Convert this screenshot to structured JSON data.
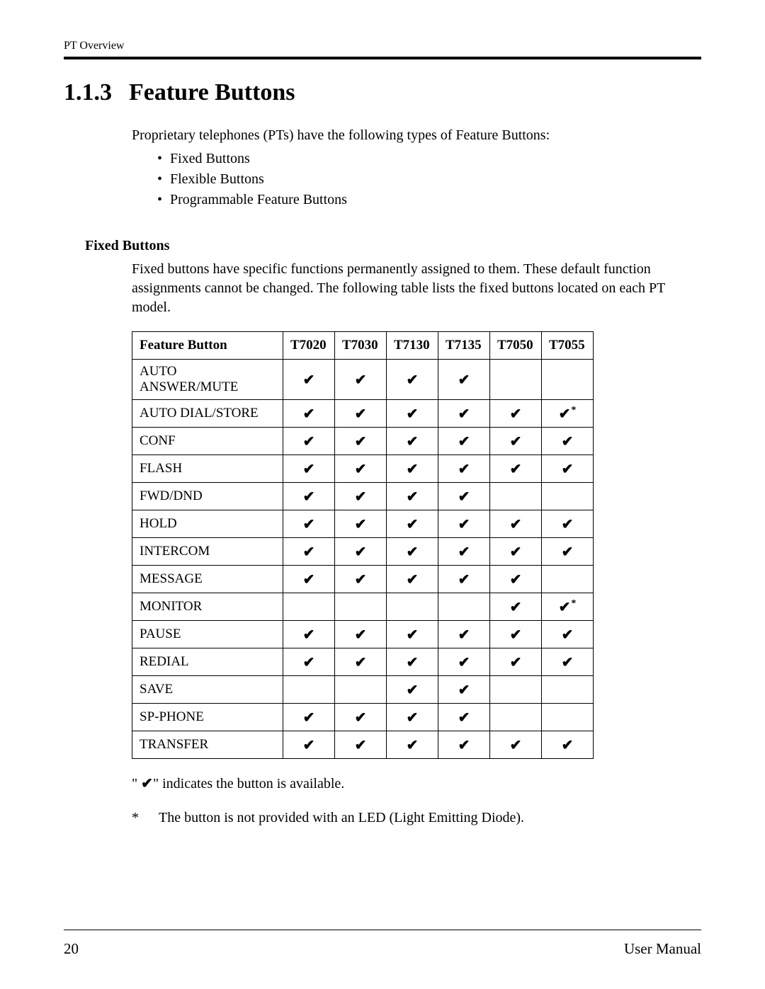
{
  "header": {
    "running": "PT Overview"
  },
  "section": {
    "number": "1.1.3",
    "title": "Feature Buttons",
    "intro": "Proprietary telephones (PTs) have the following types of Feature Buttons:",
    "bullets": [
      "Fixed Buttons",
      "Flexible Buttons",
      "Programmable Feature Buttons"
    ]
  },
  "subsection": {
    "heading": "Fixed Buttons",
    "description": "Fixed buttons have specific functions permanently assigned to them. These default function assignments cannot be changed. The following table lists the fixed buttons located on each PT model."
  },
  "table": {
    "head": {
      "feature_label": "Feature Button",
      "models": [
        "T7020",
        "T7030",
        "T7130",
        "T7135",
        "T7050",
        "T7055"
      ]
    },
    "check_glyph": "✔",
    "star_glyph": "*",
    "rows": [
      {
        "name": "AUTO ANSWER/MUTE",
        "cells": [
          "c",
          "c",
          "c",
          "c",
          "",
          ""
        ]
      },
      {
        "name": "AUTO DIAL/STORE",
        "cells": [
          "c",
          "c",
          "c",
          "c",
          "c",
          "cs"
        ]
      },
      {
        "name": "CONF",
        "cells": [
          "c",
          "c",
          "c",
          "c",
          "c",
          "c"
        ]
      },
      {
        "name": "FLASH",
        "cells": [
          "c",
          "c",
          "c",
          "c",
          "c",
          "c"
        ]
      },
      {
        "name": "FWD/DND",
        "cells": [
          "c",
          "c",
          "c",
          "c",
          "",
          ""
        ]
      },
      {
        "name": "HOLD",
        "cells": [
          "c",
          "c",
          "c",
          "c",
          "c",
          "c"
        ]
      },
      {
        "name": "INTERCOM",
        "cells": [
          "c",
          "c",
          "c",
          "c",
          "c",
          "c"
        ]
      },
      {
        "name": "MESSAGE",
        "cells": [
          "c",
          "c",
          "c",
          "c",
          "c",
          ""
        ]
      },
      {
        "name": "MONITOR",
        "cells": [
          "",
          "",
          "",
          "",
          "c",
          "cs"
        ]
      },
      {
        "name": "PAUSE",
        "cells": [
          "c",
          "c",
          "c",
          "c",
          "c",
          "c"
        ]
      },
      {
        "name": "REDIAL",
        "cells": [
          "c",
          "c",
          "c",
          "c",
          "c",
          "c"
        ]
      },
      {
        "name": "SAVE",
        "cells": [
          "",
          "",
          "c",
          "c",
          "",
          ""
        ]
      },
      {
        "name": "SP-PHONE",
        "cells": [
          "c",
          "c",
          "c",
          "c",
          "",
          ""
        ]
      },
      {
        "name": "TRANSFER",
        "cells": [
          "c",
          "c",
          "c",
          "c",
          "c",
          "c"
        ]
      }
    ]
  },
  "legend": {
    "line1_pre": "\" ",
    "line1_post": "\" indicates the button is available.",
    "note_marker": "*",
    "note_text": "The button is not provided with an LED (Light Emitting Diode)."
  },
  "footer": {
    "page_number": "20",
    "doc_title": "User Manual"
  }
}
